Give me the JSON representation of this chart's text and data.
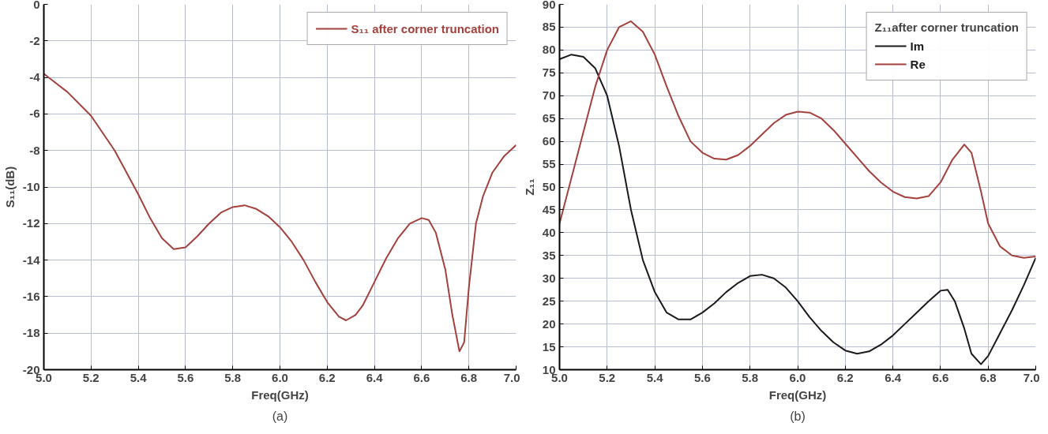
{
  "chart_data": [
    {
      "type": "line",
      "xlabel": "Freq(GHz)",
      "ylabel": "S₁₁(dB)",
      "annotations": [
        "(a)"
      ],
      "xlim": [
        5,
        7
      ],
      "ylim": [
        -20,
        0
      ],
      "xticks": [
        {
          "value": 5,
          "label": "5.0"
        },
        {
          "value": 5.2,
          "label": "5.2"
        },
        {
          "value": 5.4,
          "label": "5.4"
        },
        {
          "value": 5.6,
          "label": "5.6"
        },
        {
          "value": 5.8,
          "label": "5.8"
        },
        {
          "value": 6,
          "label": "6.0"
        },
        {
          "value": 6.2,
          "label": "6.2"
        },
        {
          "value": 6.4,
          "label": "6.4"
        },
        {
          "value": 6.6,
          "label": "6.6"
        },
        {
          "value": 6.8,
          "label": "6.8"
        },
        {
          "value": 7,
          "label": "7.0"
        }
      ],
      "yticks": [
        0,
        -2,
        -4,
        -6,
        -8,
        -10,
        -12,
        -14,
        -16,
        -18,
        -20
      ],
      "grid": true,
      "legend": "top right",
      "x": [
        5.0,
        5.1,
        5.2,
        5.3,
        5.4,
        5.45,
        5.5,
        5.55,
        5.6,
        5.65,
        5.7,
        5.75,
        5.8,
        5.85,
        5.9,
        5.95,
        6.0,
        6.05,
        6.1,
        6.15,
        6.2,
        6.25,
        6.28,
        6.32,
        6.35,
        6.4,
        6.45,
        6.5,
        6.55,
        6.6,
        6.63,
        6.66,
        6.7,
        6.73,
        6.76,
        6.78,
        6.8,
        6.83,
        6.86,
        6.9,
        6.95,
        7.0
      ],
      "series": [
        {
          "name": "S₁₁ after corner truncation",
          "color": "#a3413d",
          "values": [
            -3.8,
            -4.8,
            -6.1,
            -8.0,
            -10.4,
            -11.7,
            -12.8,
            -13.4,
            -13.3,
            -12.7,
            -12.0,
            -11.4,
            -11.1,
            -11.0,
            -11.2,
            -11.6,
            -12.2,
            -13.0,
            -14.0,
            -15.2,
            -16.3,
            -17.1,
            -17.3,
            -17.0,
            -16.5,
            -15.2,
            -13.9,
            -12.8,
            -12.0,
            -11.7,
            -11.8,
            -12.5,
            -14.5,
            -17.0,
            -19.0,
            -18.5,
            -15.5,
            -12.0,
            -10.5,
            -9.2,
            -8.3,
            -7.7
          ]
        }
      ]
    },
    {
      "type": "line",
      "xlabel": "Freq(GHz)",
      "ylabel": "Z₁₁",
      "legend_title": "Z₁₁after corner truncation",
      "annotations": [
        "(b)"
      ],
      "xlim": [
        5,
        7
      ],
      "ylim": [
        10,
        90
      ],
      "xticks": [
        {
          "value": 5,
          "label": "5.0"
        },
        {
          "value": 5.2,
          "label": "5.2"
        },
        {
          "value": 5.4,
          "label": "5.4"
        },
        {
          "value": 5.6,
          "label": "5.6"
        },
        {
          "value": 5.8,
          "label": "5.8"
        },
        {
          "value": 6,
          "label": "6.0"
        },
        {
          "value": 6.2,
          "label": "6.2"
        },
        {
          "value": 6.4,
          "label": "6.4"
        },
        {
          "value": 6.6,
          "label": "6.6"
        },
        {
          "value": 6.8,
          "label": "6.8"
        },
        {
          "value": 7,
          "label": "7.0"
        }
      ],
      "yticks": [
        10,
        15,
        20,
        25,
        30,
        35,
        40,
        45,
        50,
        55,
        60,
        65,
        70,
        75,
        80,
        85,
        90
      ],
      "grid": true,
      "legend": "top right",
      "x": [
        5.0,
        5.05,
        5.1,
        5.15,
        5.2,
        5.25,
        5.3,
        5.35,
        5.4,
        5.45,
        5.5,
        5.55,
        5.6,
        5.65,
        5.7,
        5.75,
        5.8,
        5.85,
        5.9,
        5.95,
        6.0,
        6.05,
        6.1,
        6.15,
        6.2,
        6.25,
        6.3,
        6.35,
        6.4,
        6.45,
        6.5,
        6.55,
        6.6,
        6.63,
        6.66,
        6.7,
        6.73,
        6.77,
        6.8,
        6.85,
        6.9,
        6.95,
        7.0
      ],
      "series": [
        {
          "name": "Im",
          "color": "#1a1a1a",
          "values": [
            78,
            79,
            78.5,
            76,
            70,
            59,
            45,
            34,
            27,
            22.5,
            21,
            21,
            22.5,
            24.5,
            27,
            29,
            30.5,
            30.8,
            30,
            28,
            25,
            21.5,
            18.5,
            16,
            14.2,
            13.5,
            14,
            15.5,
            17.5,
            20,
            22.5,
            25,
            27.3,
            27.5,
            25,
            19,
            13.5,
            11.2,
            13,
            18,
            23,
            28.5,
            34.5
          ]
        },
        {
          "name": "Re",
          "color": "#a3413d",
          "x": [
            5.0,
            5.05,
            5.1,
            5.15,
            5.2,
            5.25,
            5.3,
            5.35,
            5.4,
            5.45,
            5.5,
            5.55,
            5.6,
            5.65,
            5.7,
            5.75,
            5.8,
            5.85,
            5.9,
            5.95,
            6.0,
            6.05,
            6.1,
            6.15,
            6.2,
            6.25,
            6.3,
            6.35,
            6.4,
            6.45,
            6.5,
            6.55,
            6.6,
            6.65,
            6.7,
            6.73,
            6.77,
            6.8,
            6.85,
            6.9,
            6.95,
            7.0
          ],
          "values": [
            42,
            52,
            62,
            72,
            80,
            85,
            86.3,
            84,
            79,
            72,
            65.5,
            60,
            57.5,
            56.2,
            56,
            57,
            59,
            61.5,
            64,
            65.8,
            66.5,
            66.3,
            65,
            62.5,
            59.5,
            56.5,
            53.5,
            51,
            49,
            47.8,
            47.5,
            48,
            51,
            56,
            59.3,
            57.5,
            49,
            42,
            37,
            35,
            34.5,
            34.8
          ]
        }
      ]
    }
  ]
}
